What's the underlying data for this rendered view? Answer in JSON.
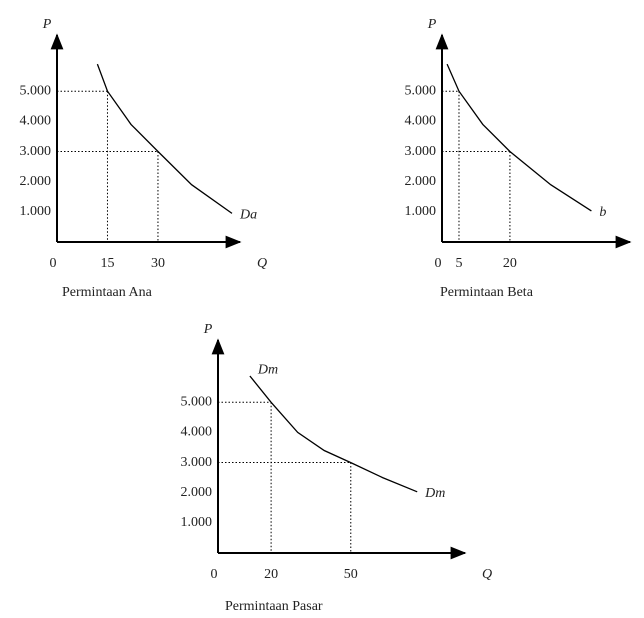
{
  "chart_data": [
    {
      "type": "line",
      "caption": "Permintaan Ana",
      "xlabel": "Q",
      "ylabel": "P",
      "x": [
        12,
        15,
        22,
        30,
        40,
        52
      ],
      "series": [
        {
          "name": "Da",
          "color": "#000000",
          "values": [
            5900,
            5000,
            3900,
            3000,
            1900,
            950
          ]
        }
      ],
      "xlim": [
        0,
        52
      ],
      "ylim": [
        0,
        6600
      ],
      "xticks": [
        0,
        15,
        30
      ],
      "yticks": [
        {
          "value": 1000,
          "label": "1.000"
        },
        {
          "value": 2000,
          "label": "2.000"
        },
        {
          "value": 3000,
          "label": "3.000"
        },
        {
          "value": 4000,
          "label": "4.000"
        },
        {
          "value": 5000,
          "label": "5.000"
        }
      ]
    },
    {
      "type": "line",
      "caption": "Permintaan Beta",
      "xlabel": "Q",
      "ylabel": "P",
      "x": [
        1.5,
        5,
        12,
        20,
        32,
        44
      ],
      "series": [
        {
          "name": "b",
          "color": "#000000",
          "values": [
            5900,
            5000,
            3900,
            3000,
            1900,
            1030
          ]
        }
      ],
      "xlim": [
        0,
        53
      ],
      "ylim": [
        0,
        6600
      ],
      "xticks": [
        0,
        5,
        20
      ],
      "yticks": [
        {
          "value": 1000,
          "label": "1.000"
        },
        {
          "value": 2000,
          "label": "2.000"
        },
        {
          "value": 3000,
          "label": "3.000"
        },
        {
          "value": 4000,
          "label": "4.000"
        },
        {
          "value": 5000,
          "label": "5.000"
        }
      ]
    },
    {
      "type": "line",
      "caption": "Permintaan Pasar",
      "xlabel": "Q",
      "ylabel": "P",
      "start_label": "Dm",
      "x": [
        12,
        20,
        30,
        40,
        50,
        62,
        75
      ],
      "series": [
        {
          "name": "Dm",
          "color": "#000000",
          "values": [
            5870,
            5000,
            4000,
            3400,
            3000,
            2500,
            2030
          ]
        }
      ],
      "xlim": [
        0,
        90
      ],
      "ylim": [
        0,
        6800
      ],
      "xticks": [
        0,
        20,
        50
      ],
      "yticks": [
        {
          "value": 1000,
          "label": "1.000"
        },
        {
          "value": 2000,
          "label": "2.000"
        },
        {
          "value": 3000,
          "label": "3.000"
        },
        {
          "value": 4000,
          "label": "4.000"
        },
        {
          "value": 5000,
          "label": "5.000"
        }
      ]
    }
  ]
}
